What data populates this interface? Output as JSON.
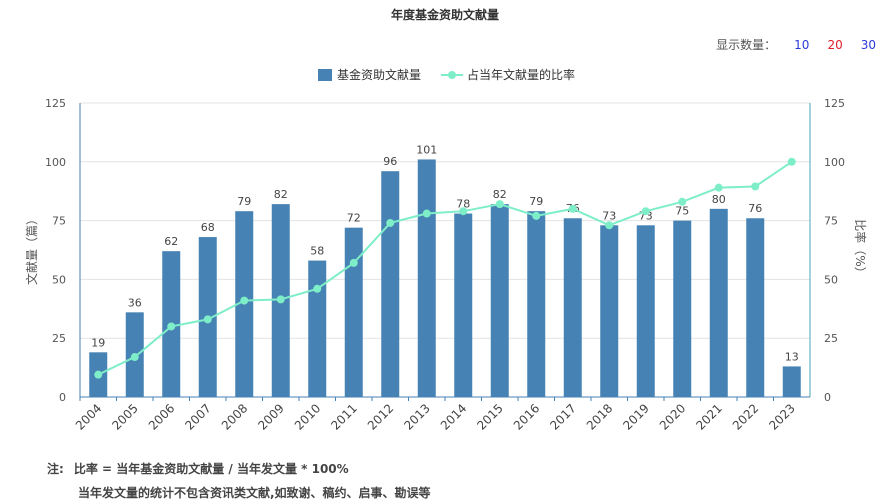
{
  "title": "年度基金资助文献量",
  "show_count": {
    "label": "显示数量：",
    "options": [
      "10",
      "20",
      "30"
    ]
  },
  "colors": {
    "bar": "#4682b4",
    "line": "#7eeec8",
    "axis_right": "#4aa3b8"
  },
  "notes": {
    "label": "注:",
    "line1": "比率 = 当年基金资助文献量 / 当年发文量 * 100%",
    "line2": "当年发文量的统计不包含资讯类文献,如致谢、稿约、启事、勘误等"
  },
  "chart_data": {
    "type": "bar",
    "title": "年度基金资助文献量",
    "categories": [
      "2004",
      "2005",
      "2006",
      "2007",
      "2008",
      "2009",
      "2010",
      "2011",
      "2012",
      "2013",
      "2014",
      "2015",
      "2016",
      "2017",
      "2018",
      "2019",
      "2020",
      "2021",
      "2022",
      "2023"
    ],
    "series": [
      {
        "name": "基金资助文献量",
        "type": "bar",
        "values": [
          19,
          36,
          62,
          68,
          79,
          82,
          58,
          72,
          96,
          101,
          78,
          82,
          79,
          76,
          73,
          73,
          75,
          80,
          76,
          13
        ]
      },
      {
        "name": "占当年文献量的比率",
        "type": "line",
        "values": [
          9.5,
          17,
          30,
          33,
          41,
          41.5,
          46,
          57,
          74,
          78,
          79,
          82,
          77,
          80,
          73,
          79,
          83,
          89,
          89.5,
          100
        ]
      }
    ],
    "ylabel": "文献量（篇）",
    "ylabel_right": "比率（%）",
    "ylim": [
      0,
      125
    ],
    "ylim_right": [
      0,
      125
    ],
    "yticks": [
      0,
      25,
      50,
      75,
      100,
      125
    ],
    "grid": true,
    "legend_position": "top-center"
  }
}
